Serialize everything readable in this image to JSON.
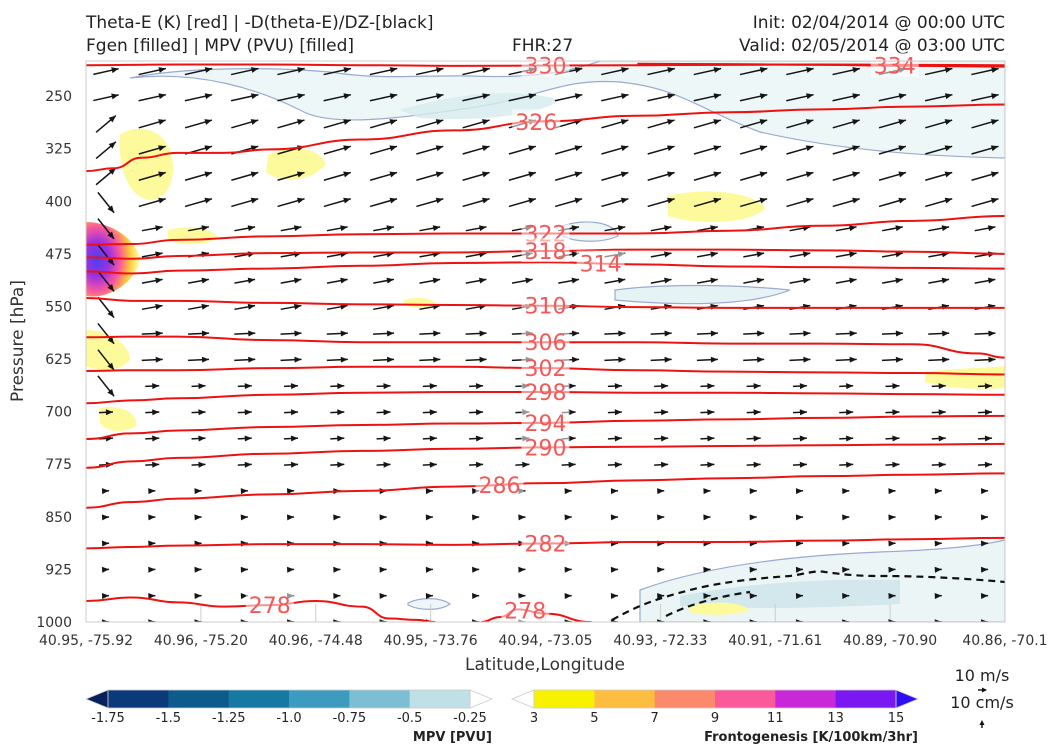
{
  "header": {
    "title_line1": "Theta-E (K) [red] | -D(theta-E)/DZ-[black]",
    "title_line2": "Fgen [filled] | MPV (PVU) [filled]",
    "fhr": "FHR:27",
    "init": "Init: 02/04/2014 @ 00:00 UTC",
    "valid": "Valid: 02/05/2014 @ 03:00 UTC"
  },
  "chart_data": {
    "type": "cross-section",
    "xlabel": "Latitude,Longitude",
    "ylabel": "Pressure [hPa]",
    "ylim": [
      1000,
      200
    ],
    "y_ticks": [
      250,
      325,
      400,
      475,
      550,
      625,
      700,
      775,
      850,
      925,
      1000
    ],
    "x_tick_labels": [
      "40.95, -75.92",
      "40.96, -75.20",
      "40.96, -74.48",
      "40.95, -73.76",
      "40.94, -73.05",
      "40.93, -72.33",
      "40.91, -71.61",
      "40.89, -70.90",
      "40.86, -70.1"
    ],
    "theta_e_contours": [
      {
        "level": 330,
        "label": "330",
        "pts": [
          [
            0,
            206
          ],
          [
            0.1,
            205
          ],
          [
            0.2,
            205
          ],
          [
            0.3,
            206
          ],
          [
            0.4,
            207
          ],
          [
            0.5,
            206.5
          ],
          [
            0.6,
            206
          ],
          [
            0.7,
            205.5
          ],
          [
            0.8,
            205
          ],
          [
            0.9,
            205.5
          ],
          [
            1,
            206
          ]
        ]
      },
      {
        "level": 334,
        "label": "334",
        "pts": [
          [
            0.6,
            204
          ],
          [
            0.7,
            204.5
          ],
          [
            0.8,
            205.5
          ],
          [
            0.9,
            207
          ],
          [
            1,
            208
          ]
        ]
      },
      {
        "level": 326,
        "label": "326",
        "pts": [
          [
            0,
            357
          ],
          [
            0.03,
            353
          ],
          [
            0.06,
            338
          ],
          [
            0.1,
            331
          ],
          [
            0.15,
            331
          ],
          [
            0.2,
            326
          ],
          [
            0.3,
            312
          ],
          [
            0.4,
            299
          ],
          [
            0.5,
            286
          ],
          [
            0.6,
            278
          ],
          [
            0.7,
            273
          ],
          [
            0.8,
            269
          ],
          [
            0.9,
            265
          ],
          [
            1,
            262
          ]
        ]
      },
      {
        "level": 322,
        "label": "322",
        "pts": [
          [
            0,
            462
          ],
          [
            0.05,
            461
          ],
          [
            0.1,
            455
          ],
          [
            0.2,
            450
          ],
          [
            0.3,
            447
          ],
          [
            0.4,
            446
          ],
          [
            0.5,
            446
          ],
          [
            0.6,
            446
          ],
          [
            0.7,
            442
          ],
          [
            0.8,
            435
          ],
          [
            0.9,
            428
          ],
          [
            1,
            421
          ]
        ]
      },
      {
        "level": 318,
        "label": "318",
        "pts": [
          [
            0,
            480
          ],
          [
            0.05,
            482
          ],
          [
            0.1,
            478
          ],
          [
            0.2,
            474
          ],
          [
            0.3,
            473
          ],
          [
            0.4,
            473
          ],
          [
            0.5,
            471
          ],
          [
            0.6,
            469
          ],
          [
            0.7,
            469
          ],
          [
            0.8,
            470
          ],
          [
            0.9,
            472
          ],
          [
            1,
            475
          ]
        ]
      },
      {
        "level": 314,
        "label": "314",
        "pts": [
          [
            0,
            500
          ],
          [
            0.05,
            503
          ],
          [
            0.1,
            499
          ],
          [
            0.2,
            496
          ],
          [
            0.3,
            492
          ],
          [
            0.4,
            488
          ],
          [
            0.5,
            487
          ],
          [
            0.6,
            490
          ],
          [
            0.7,
            493
          ],
          [
            0.8,
            494
          ],
          [
            0.9,
            495
          ],
          [
            1,
            496
          ]
        ]
      },
      {
        "level": 310,
        "label": "310",
        "pts": [
          [
            0,
            538
          ],
          [
            0.05,
            542
          ],
          [
            0.1,
            542
          ],
          [
            0.2,
            545
          ],
          [
            0.3,
            547
          ],
          [
            0.4,
            548
          ],
          [
            0.5,
            549
          ],
          [
            0.6,
            551
          ],
          [
            0.7,
            552
          ],
          [
            0.8,
            552
          ],
          [
            0.9,
            552
          ],
          [
            1,
            552
          ]
        ]
      },
      {
        "level": 306,
        "label": "306",
        "pts": [
          [
            0,
            594
          ],
          [
            0.05,
            593
          ],
          [
            0.1,
            593
          ],
          [
            0.2,
            598
          ],
          [
            0.3,
            601
          ],
          [
            0.4,
            601
          ],
          [
            0.5,
            601
          ],
          [
            0.6,
            601
          ],
          [
            0.7,
            603
          ],
          [
            0.8,
            603
          ],
          [
            0.9,
            604
          ],
          [
            0.97,
            617
          ],
          [
            1,
            623
          ]
        ]
      },
      {
        "level": 302,
        "label": "302",
        "pts": [
          [
            0,
            642
          ],
          [
            0.05,
            641
          ],
          [
            0.1,
            641
          ],
          [
            0.2,
            638
          ],
          [
            0.3,
            636
          ],
          [
            0.4,
            636
          ],
          [
            0.5,
            638
          ],
          [
            0.6,
            641
          ],
          [
            0.7,
            643
          ],
          [
            0.8,
            644
          ],
          [
            0.9,
            645
          ],
          [
            1,
            647
          ]
        ]
      },
      {
        "level": 298,
        "label": "298",
        "pts": [
          [
            0,
            688
          ],
          [
            0.05,
            684
          ],
          [
            0.1,
            681
          ],
          [
            0.2,
            676
          ],
          [
            0.3,
            673
          ],
          [
            0.4,
            672
          ],
          [
            0.5,
            672
          ],
          [
            0.6,
            673
          ],
          [
            0.7,
            673
          ],
          [
            0.8,
            674
          ],
          [
            0.9,
            675
          ],
          [
            1,
            676
          ]
        ]
      },
      {
        "level": 294,
        "label": "294",
        "pts": [
          [
            0,
            739
          ],
          [
            0.05,
            731
          ],
          [
            0.1,
            727
          ],
          [
            0.2,
            722
          ],
          [
            0.3,
            719
          ],
          [
            0.4,
            717
          ],
          [
            0.5,
            716
          ],
          [
            0.6,
            713
          ],
          [
            0.7,
            711
          ],
          [
            0.8,
            709
          ],
          [
            0.9,
            707
          ],
          [
            1,
            706
          ]
        ]
      },
      {
        "level": 290,
        "label": "290",
        "pts": [
          [
            0,
            780
          ],
          [
            0.05,
            771
          ],
          [
            0.1,
            766
          ],
          [
            0.2,
            760
          ],
          [
            0.3,
            756
          ],
          [
            0.4,
            753
          ],
          [
            0.5,
            751
          ],
          [
            0.6,
            750
          ],
          [
            0.7,
            749
          ],
          [
            0.8,
            748
          ],
          [
            0.9,
            747
          ],
          [
            1,
            746
          ]
        ]
      },
      {
        "level": 286,
        "label": "286",
        "pts": [
          [
            0,
            837
          ],
          [
            0.05,
            829
          ],
          [
            0.1,
            824
          ],
          [
            0.2,
            818
          ],
          [
            0.3,
            813
          ],
          [
            0.4,
            807
          ],
          [
            0.5,
            802
          ],
          [
            0.6,
            798
          ],
          [
            0.7,
            795
          ],
          [
            0.8,
            792
          ],
          [
            0.9,
            790
          ],
          [
            1,
            788
          ]
        ]
      },
      {
        "level": 282,
        "label": "282",
        "pts": [
          [
            0,
            895
          ],
          [
            0.05,
            893
          ],
          [
            0.1,
            891
          ],
          [
            0.2,
            889
          ],
          [
            0.3,
            889
          ],
          [
            0.4,
            890
          ],
          [
            0.5,
            888
          ],
          [
            0.6,
            886
          ],
          [
            0.7,
            886
          ],
          [
            0.8,
            884
          ],
          [
            0.9,
            882
          ],
          [
            1,
            880
          ]
        ]
      },
      {
        "level": 278,
        "label": "278",
        "pts": [
          [
            0,
            970
          ],
          [
            0.05,
            965
          ],
          [
            0.1,
            972
          ],
          [
            0.15,
            978
          ],
          [
            0.2,
            976
          ],
          [
            0.25,
            970
          ],
          [
            0.3,
            978
          ],
          [
            0.33,
            995
          ],
          [
            0.36,
            997
          ],
          [
            0.38,
            1000
          ]
        ]
      },
      {
        "level": 278,
        "label": "278",
        "pts": [
          [
            0.43,
            1000
          ],
          [
            0.45,
            993
          ],
          [
            0.47,
            982
          ],
          [
            0.5,
            988
          ],
          [
            0.55,
            1000
          ]
        ]
      }
    ],
    "mpv_fill_levels": [
      -1.75,
      -1.5,
      -1.25,
      -1.0,
      -0.75,
      -0.5,
      -0.25
    ],
    "frontogenesis_fill_levels": [
      3,
      5,
      7,
      9,
      11,
      13,
      15
    ],
    "wind_scale": {
      "horizontal": "10 m/s",
      "vertical": "10 cm/s"
    }
  },
  "colorbars": {
    "mpv": {
      "title": "MPV [PVU]",
      "labels": [
        "-1.75",
        "-1.5",
        "-1.25",
        "-1.0",
        "-0.75",
        "-0.5",
        "-0.25"
      ],
      "colors": [
        "#08205e",
        "#0b3a7a",
        "#0d5a8c",
        "#1679a3",
        "#3d9bc0",
        "#7cbfd4",
        "#bfe0e6",
        "#ffffff"
      ]
    },
    "fgen": {
      "title": "Frontogenesis [K/100km/3hr]",
      "labels": [
        "3",
        "5",
        "7",
        "9",
        "11",
        "13",
        "15"
      ],
      "colors": [
        "#ffffff",
        "#f8f200",
        "#fdbe3f",
        "#fb8a6c",
        "#fb5a9a",
        "#c828d8",
        "#7a18f2",
        "#2e10f5"
      ]
    }
  }
}
